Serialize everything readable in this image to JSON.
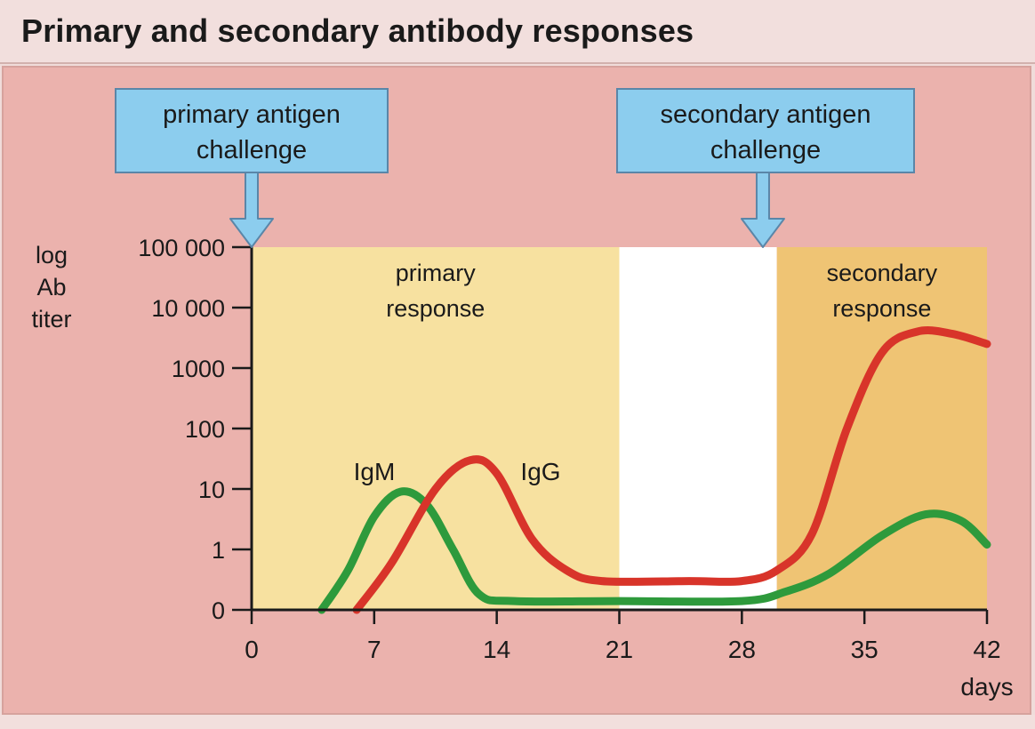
{
  "chart_data": {
    "type": "line",
    "title": "Primary and secondary antibody responses",
    "xlabel": "days",
    "ylabel": [
      "log",
      "Ab",
      "titer"
    ],
    "x_ticks": [
      0,
      7,
      14,
      21,
      28,
      35,
      42
    ],
    "xlim": [
      0,
      42
    ],
    "y_scale": "log",
    "y_ticks": [
      {
        "label": "100 000",
        "value": 100000
      },
      {
        "label": "10 000",
        "value": 10000
      },
      {
        "label": "1000",
        "value": 1000
      },
      {
        "label": "100",
        "value": 100
      },
      {
        "label": "10",
        "value": 10
      },
      {
        "label": "1",
        "value": 1
      },
      {
        "label": "0",
        "value": 0.1
      }
    ],
    "ylim": [
      0.1,
      100000
    ],
    "regions": [
      {
        "label": [
          "primary",
          "response"
        ],
        "x_start": 0,
        "x_end": 21,
        "color": "#f7e1a0"
      },
      {
        "label": [],
        "x_start": 21,
        "x_end": 30,
        "color": "#ffffff"
      },
      {
        "label": [
          "secondary",
          "response"
        ],
        "x_start": 30,
        "x_end": 42,
        "color": "#efc474"
      }
    ],
    "callouts": [
      {
        "lines": [
          "primary antigen",
          "challenge"
        ],
        "x": 0
      },
      {
        "lines": [
          "secondary antigen",
          "challenge"
        ],
        "x": 29.2
      }
    ],
    "series": [
      {
        "name": "IgM",
        "color": "#2e9a3c",
        "points": [
          [
            4,
            0.1
          ],
          [
            5.5,
            0.45
          ],
          [
            7,
            3.5
          ],
          [
            8.5,
            9
          ],
          [
            10,
            5.5
          ],
          [
            11.5,
            1
          ],
          [
            13,
            0.18
          ],
          [
            15,
            0.14
          ],
          [
            21,
            0.14
          ],
          [
            28,
            0.14
          ],
          [
            30.5,
            0.2
          ],
          [
            33,
            0.4
          ],
          [
            36,
            1.7
          ],
          [
            38.5,
            3.8
          ],
          [
            40.5,
            3
          ],
          [
            42,
            1.2
          ]
        ]
      },
      {
        "name": "IgG",
        "color": "#d8342a",
        "points": [
          [
            6,
            0.1
          ],
          [
            8,
            0.6
          ],
          [
            10.5,
            10
          ],
          [
            12.5,
            30
          ],
          [
            14,
            18
          ],
          [
            16,
            1.5
          ],
          [
            18,
            0.45
          ],
          [
            20,
            0.3
          ],
          [
            25,
            0.3
          ],
          [
            28,
            0.3
          ],
          [
            30,
            0.45
          ],
          [
            32,
            1.8
          ],
          [
            34,
            100
          ],
          [
            36,
            1800
          ],
          [
            38,
            4000
          ],
          [
            40,
            3700
          ],
          [
            42,
            2500
          ]
        ]
      }
    ]
  }
}
